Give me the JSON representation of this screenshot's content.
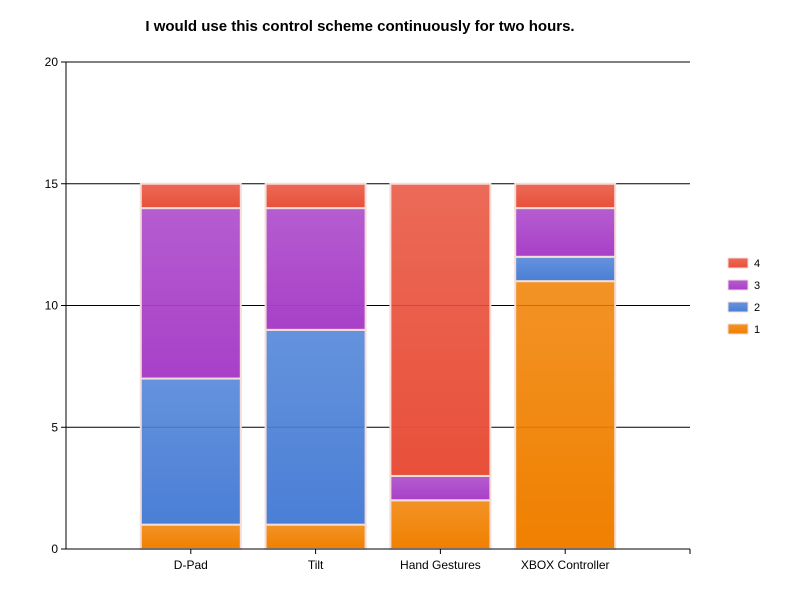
{
  "chart_data": {
    "type": "bar",
    "stacked": true,
    "title": "I would use this control scheme continuously for two hours.",
    "xlabel": "",
    "ylabel": "",
    "categories": [
      "D-Pad",
      "Tilt",
      "Hand Gestures",
      "XBOX Controller"
    ],
    "ylim": [
      0,
      20
    ],
    "yticks": [
      0,
      5,
      10,
      15,
      20
    ],
    "grid": true,
    "legend_position": "right",
    "series": [
      {
        "name": "1",
        "values": [
          1,
          1,
          2,
          11
        ],
        "color": "#f08000"
      },
      {
        "name": "2",
        "values": [
          6,
          8,
          0,
          1
        ],
        "color": "#4a7fd6"
      },
      {
        "name": "3",
        "values": [
          7,
          5,
          1,
          2
        ],
        "color": "#a840c8"
      },
      {
        "name": "4",
        "values": [
          1,
          1,
          12,
          1
        ],
        "color": "#e8503a"
      }
    ]
  }
}
